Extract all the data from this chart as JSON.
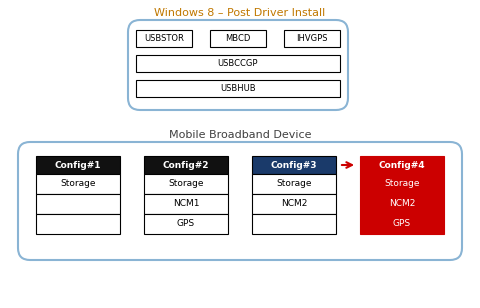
{
  "title_top": "Windows 8 – Post Driver Install",
  "title_bottom": "Mobile Broadband Device",
  "title_color": "#c07800",
  "title_bottom_color": "#404040",
  "top_box_edge": "#8ab4d4",
  "top_items_row1": [
    "USBSTOR",
    "MBCD",
    "IHVGPS"
  ],
  "top_items_row2": "USBCCGP",
  "top_items_row3": "USBHUB",
  "configs": [
    "Config#1",
    "Config#2",
    "Config#3",
    "Config#4"
  ],
  "config_header_bg": [
    "#111111",
    "#111111",
    "#1a3a6a",
    "#cc0000"
  ],
  "config_header_text": "#ffffff",
  "config_rows": {
    "Config#1": [
      "Storage",
      "",
      ""
    ],
    "Config#2": [
      "Storage",
      "NCM1",
      "GPS"
    ],
    "Config#3": [
      "Storage",
      "NCM2",
      ""
    ],
    "Config#4": [
      "Storage",
      "NCM2",
      "GPS"
    ]
  },
  "config_row_bg": {
    "Config#1": [
      "#ffffff",
      "#ffffff",
      "#ffffff"
    ],
    "Config#2": [
      "#ffffff",
      "#ffffff",
      "#ffffff"
    ],
    "Config#3": [
      "#ffffff",
      "#ffffff",
      "#ffffff"
    ],
    "Config#4": [
      "#cc0000",
      "#cc0000",
      "#cc0000"
    ]
  },
  "config_row_text": {
    "Config#1": [
      "#000000",
      "#000000",
      "#000000"
    ],
    "Config#2": [
      "#000000",
      "#000000",
      "#000000"
    ],
    "Config#3": [
      "#000000",
      "#000000",
      "#000000"
    ],
    "Config#4": [
      "#ffffff",
      "#ffffff",
      "#ffffff"
    ]
  },
  "arrow_color": "#cc0000",
  "outer_box_edge": "#8ab4d4",
  "bg_color": "#ffffff"
}
